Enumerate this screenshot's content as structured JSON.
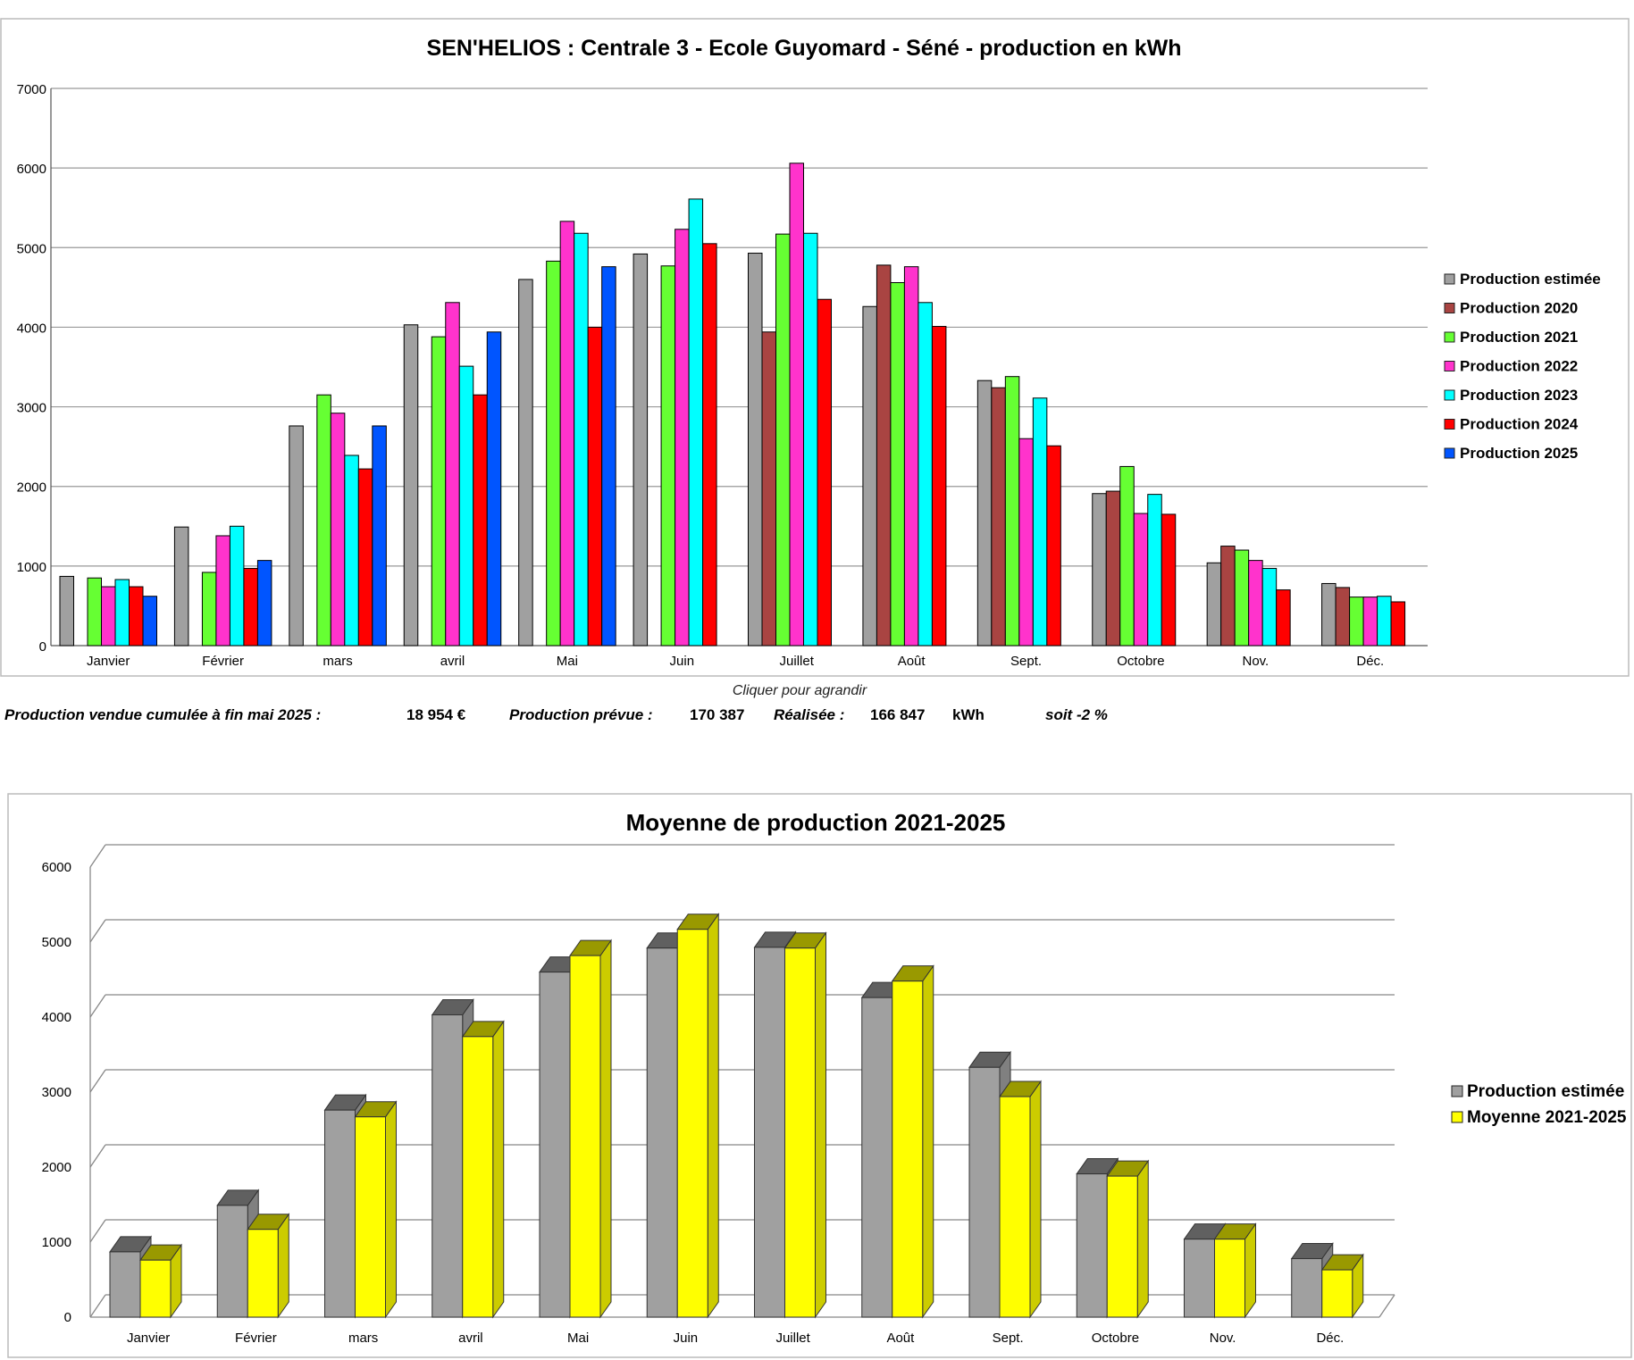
{
  "charts": [
    {
      "type": "bar",
      "title": "SEN'HELIOS : Centrale 3  - Ecole Guyomard - Séné - production en kWh",
      "categories": [
        "Janvier",
        "Février",
        "mars",
        "avril",
        "Mai",
        "Juin",
        "Juillet",
        "Août",
        "Sept.",
        "Octobre",
        "Nov.",
        "Déc."
      ],
      "ylim": [
        0,
        7000
      ],
      "yticks": [
        0,
        1000,
        2000,
        3000,
        4000,
        5000,
        6000,
        7000
      ],
      "grid": true,
      "legend_position": "right",
      "series": [
        {
          "name": "Production estimée",
          "color": "#a0a0a0",
          "values": [
            870,
            1490,
            2760,
            4030,
            4600,
            4920,
            4930,
            4260,
            3330,
            1910,
            1040,
            780
          ]
        },
        {
          "name": "Production 2020",
          "color": "#a94442",
          "values": [
            null,
            null,
            null,
            null,
            null,
            null,
            3940,
            4780,
            3240,
            1940,
            1250,
            730
          ]
        },
        {
          "name": "Production 2021",
          "color": "#66ff33",
          "values": [
            850,
            920,
            3150,
            3880,
            4830,
            4770,
            5170,
            4560,
            3380,
            2250,
            1200,
            610
          ]
        },
        {
          "name": "Production 2022",
          "color": "#ff33cc",
          "values": [
            740,
            1380,
            2920,
            4310,
            5330,
            5230,
            6060,
            4760,
            2600,
            1660,
            1070,
            610
          ]
        },
        {
          "name": "Production 2023",
          "color": "#00ffff",
          "values": [
            830,
            1500,
            2390,
            3510,
            5180,
            5610,
            5180,
            4310,
            3110,
            1900,
            970,
            620
          ]
        },
        {
          "name": "Production 2024",
          "color": "#ff0000",
          "values": [
            740,
            970,
            2220,
            3150,
            4000,
            5050,
            4350,
            4010,
            2510,
            1650,
            700,
            550
          ]
        },
        {
          "name": "Production 2025",
          "color": "#0055ff",
          "values": [
            620,
            1070,
            2760,
            3940,
            4760,
            null,
            null,
            null,
            null,
            null,
            null,
            null
          ]
        }
      ]
    },
    {
      "type": "bar",
      "title": "Moyenne de production 2021-2025",
      "categories": [
        "Janvier",
        "Février",
        "mars",
        "avril",
        "Mai",
        "Juin",
        "Juillet",
        "Août",
        "Sept.",
        "Octobre",
        "Nov.",
        "Déc."
      ],
      "ylim": [
        0,
        6000
      ],
      "yticks": [
        0,
        1000,
        2000,
        3000,
        4000,
        5000,
        6000
      ],
      "grid": true,
      "legend_position": "right",
      "series": [
        {
          "name": "Production estimée",
          "color": "#a0a0a0",
          "values": [
            870,
            1490,
            2760,
            4030,
            4600,
            4920,
            4930,
            4260,
            3330,
            1910,
            1040,
            780
          ]
        },
        {
          "name": "Moyenne 2021-2025",
          "color": "#ffff00",
          "values": [
            760,
            1170,
            2670,
            3740,
            4820,
            5170,
            4920,
            4480,
            2940,
            1880,
            1040,
            630
          ]
        }
      ]
    }
  ],
  "summary": {
    "caption": "Cliquer pour agrandir",
    "sold_label": "Production vendue cumulée à fin mai 2025 :",
    "sold_value": "18 954 €",
    "planned_label": "Production prévue :",
    "planned_value": "170 387",
    "realized_label": "Réalisée :",
    "realized_value": "166 847",
    "unit": "kWh",
    "ratio": "soit -2 %"
  }
}
